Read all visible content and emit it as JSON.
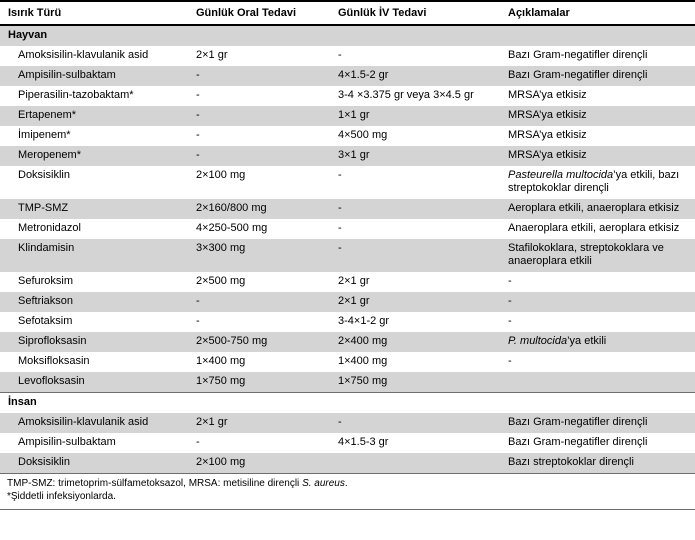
{
  "table": {
    "headers": [
      "Isırık Türü",
      "Günlük Oral Tedavi",
      "Günlük İV Tedavi",
      "Açıklamalar"
    ],
    "shade_color": "#d4d4d4",
    "sections": [
      {
        "label": "Hayvan",
        "rows": [
          {
            "name": "Amoksisilin-klavulanik asid",
            "oral": "2×1 gr",
            "iv": "-",
            "note": [
              {
                "t": "Bazı Gram-negatifler dirençli",
                "i": false
              }
            ]
          },
          {
            "name": "Ampisilin-sulbaktam",
            "oral": "-",
            "iv": "4×1.5-2 gr",
            "note": [
              {
                "t": "Bazı Gram-negatifler dirençli",
                "i": false
              }
            ]
          },
          {
            "name": "Piperasilin-tazobaktam*",
            "oral": "-",
            "iv": "3-4 ×3.375 gr veya 3×4.5 gr",
            "note": [
              {
                "t": "MRSA’ya etkisiz",
                "i": false
              }
            ]
          },
          {
            "name": "Ertapenem*",
            "oral": "-",
            "iv": "1×1 gr",
            "note": [
              {
                "t": "MRSA’ya etkisiz",
                "i": false
              }
            ]
          },
          {
            "name": "İmipenem*",
            "oral": "-",
            "iv": "4×500 mg",
            "note": [
              {
                "t": "MRSA’ya etkisiz",
                "i": false
              }
            ]
          },
          {
            "name": "Meropenem*",
            "oral": "-",
            "iv": "3×1 gr",
            "note": [
              {
                "t": "MRSA’ya etkisiz",
                "i": false
              }
            ]
          },
          {
            "name": "Doksisiklin",
            "oral": "2×100 mg",
            "iv": "-",
            "note": [
              {
                "t": "Pasteurella multocida",
                "i": true
              },
              {
                "t": "’ya etkili, bazı streptokoklar dirençli",
                "i": false
              }
            ]
          },
          {
            "name": "TMP-SMZ",
            "oral": "2×160/800 mg",
            "iv": "-",
            "note": [
              {
                "t": "Aeroplara etkili, anaeroplara etkisiz",
                "i": false
              }
            ]
          },
          {
            "name": "Metronidazol",
            "oral": "4×250-500 mg",
            "iv": "-",
            "note": [
              {
                "t": "Anaeroplara etkili, aeroplara etkisiz",
                "i": false
              }
            ]
          },
          {
            "name": "Klindamisin",
            "oral": "3×300 mg",
            "iv": "-",
            "note": [
              {
                "t": "Stafilokoklara, streptokoklara ve anaeroplara etkili",
                "i": false
              }
            ]
          },
          {
            "name": "Sefuroksim",
            "oral": "2×500 mg",
            "iv": "2×1 gr",
            "note": [
              {
                "t": "-",
                "i": false
              }
            ]
          },
          {
            "name": "Seftriakson",
            "oral": "-",
            "iv": "2×1 gr",
            "note": [
              {
                "t": "-",
                "i": false
              }
            ]
          },
          {
            "name": "Sefotaksim",
            "oral": "-",
            "iv": "3-4×1-2 gr",
            "note": [
              {
                "t": "-",
                "i": false
              }
            ]
          },
          {
            "name": "Siprofloksasin",
            "oral": "2×500-750 mg",
            "iv": "2×400 mg",
            "note": [
              {
                "t": "P. multocida",
                "i": true
              },
              {
                "t": "’ya etkili",
                "i": false
              }
            ]
          },
          {
            "name": "Moksifloksasin",
            "oral": "1×400 mg",
            "iv": "1×400 mg",
            "note": [
              {
                "t": "-",
                "i": false
              }
            ]
          },
          {
            "name": "Levofloksasin",
            "oral": "1×750 mg",
            "iv": "1×750 mg",
            "note": []
          }
        ]
      },
      {
        "label": "İnsan",
        "rows": [
          {
            "name": "Amoksisilin-klavulanik asid",
            "oral": "2×1 gr",
            "iv": "-",
            "note": [
              {
                "t": "Bazı Gram-negatifler dirençli",
                "i": false
              }
            ]
          },
          {
            "name": "Ampisilin-sulbaktam",
            "oral": "-",
            "iv": "4×1.5-3 gr",
            "note": [
              {
                "t": "Bazı Gram-negatifler dirençli",
                "i": false
              }
            ]
          },
          {
            "name": "Doksisiklin",
            "oral": "2×100 mg",
            "iv": "",
            "note": [
              {
                "t": "Bazı streptokoklar dirençli",
                "i": false
              }
            ]
          }
        ]
      }
    ]
  },
  "footnotes": [
    {
      "segments": [
        {
          "t": "TMP-SMZ: trimetoprim-sülfametoksazol, MRSA: metisiline dirençli ",
          "i": false
        },
        {
          "t": "S. aureus",
          "i": true
        },
        {
          "t": ".",
          "i": false
        }
      ]
    },
    {
      "segments": [
        {
          "t": "*Şiddetli infeksiyonlarda.",
          "i": false
        }
      ]
    }
  ]
}
